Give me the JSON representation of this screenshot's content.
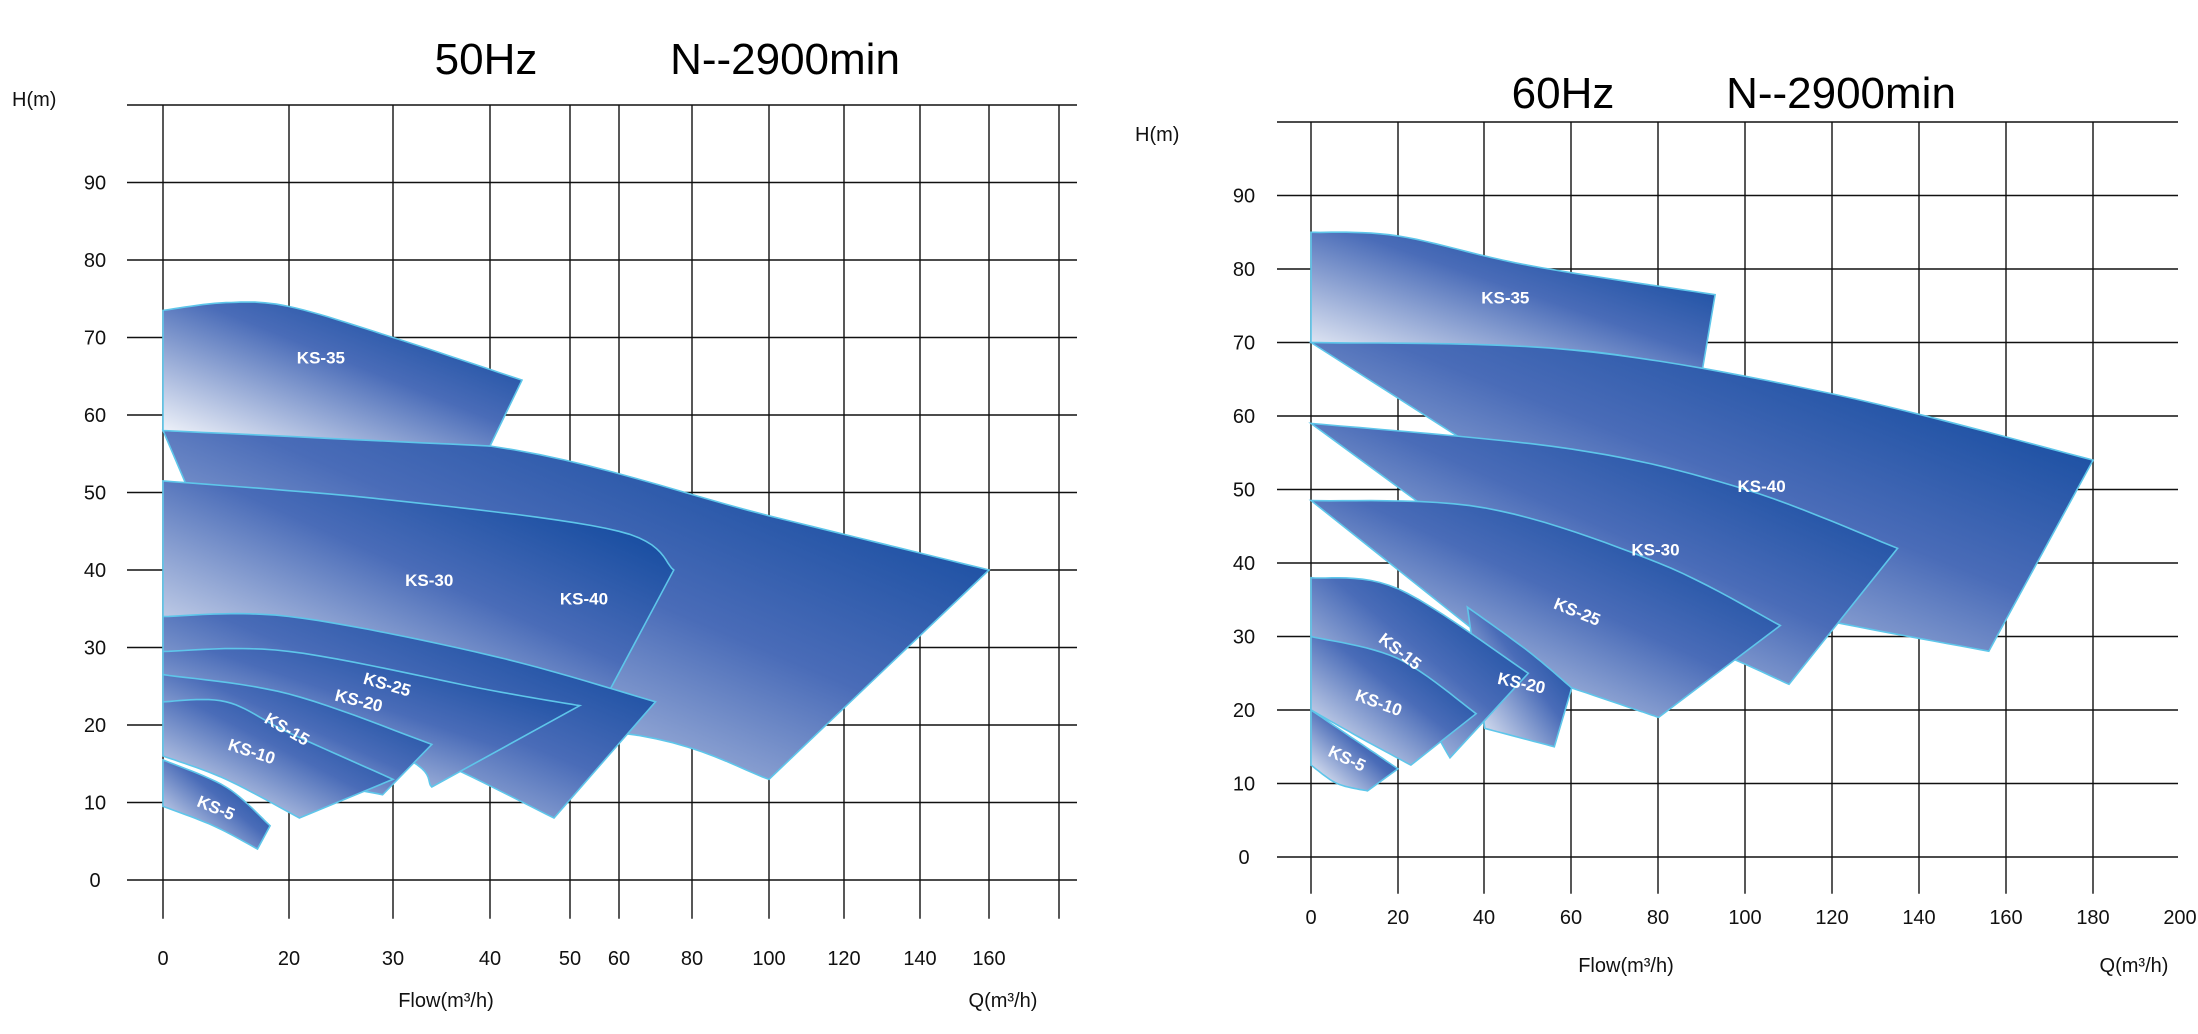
{
  "colors": {
    "curve_dark": "#003f96",
    "curve_light": "#ffffff",
    "curve_edge": "#5ec6ea",
    "grid": "#111111"
  },
  "chart_data": [
    {
      "type": "area",
      "title_left": "50Hz",
      "title_right": "N--2900min",
      "ylabel": "H(m)",
      "xlabel": "Flow(m³/h)",
      "xlabel_right": "Q(m³/h)",
      "x_ticks": [
        "0",
        "20",
        "30",
        "40",
        "50",
        "60",
        "80",
        "100",
        "120",
        "140",
        "160"
      ],
      "y_ticks": [
        0,
        10,
        20,
        30,
        40,
        50,
        60,
        70,
        80,
        90
      ],
      "ylim": [
        0,
        100
      ],
      "x_scale": "non-uniform",
      "grid": true,
      "series": [
        {
          "name": "KS-40",
          "top": [
            [
              0,
              58
            ],
            [
              40,
              56
            ],
            [
              100,
              47
            ],
            [
              160,
              40
            ]
          ],
          "bottom": [
            [
              20,
              20
            ],
            [
              60,
              19
            ],
            [
              100,
              13
            ]
          ]
        },
        {
          "name": "KS-35",
          "top": [
            [
              0,
              73.5
            ],
            [
              10,
              74.5
            ],
            [
              20,
              74
            ],
            [
              30,
              70
            ],
            [
              44,
              64.5
            ]
          ],
          "bottom": [
            [
              0,
              58
            ],
            [
              40,
              56
            ]
          ]
        },
        {
          "name": "KS-30",
          "top": [
            [
              0,
              51.5
            ],
            [
              30,
              49
            ],
            [
              60,
              45
            ],
            [
              75,
              40
            ]
          ],
          "bottom": [
            [
              0,
              34
            ],
            [
              30,
              28
            ],
            [
              56,
              22
            ]
          ]
        },
        {
          "name": "KS-25",
          "top": [
            [
              0,
              34
            ],
            [
              20,
              34
            ],
            [
              40,
              29
            ],
            [
              70,
              23
            ]
          ],
          "bottom": [
            [
              0,
              29.5
            ],
            [
              30,
              18
            ],
            [
              48,
              8
            ]
          ]
        },
        {
          "name": "KS-20",
          "top": [
            [
              0,
              29.5
            ],
            [
              20,
              29.5
            ],
            [
              40,
              24.5
            ],
            [
              52,
              22.5
            ]
          ],
          "bottom": [
            [
              0,
              26.5
            ],
            [
              30,
              16.5
            ],
            [
              34,
              12
            ]
          ]
        },
        {
          "name": "KS-15",
          "top": [
            [
              0,
              26.5
            ],
            [
              20,
              24
            ],
            [
              34,
              17.5
            ]
          ],
          "bottom": [
            [
              0,
              23
            ],
            [
              20,
              14
            ],
            [
              29,
              11
            ]
          ]
        },
        {
          "name": "KS-10",
          "top": [
            [
              0,
              23
            ],
            [
              10,
              23
            ],
            [
              20,
              19
            ],
            [
              30,
              13
            ]
          ],
          "bottom": [
            [
              0,
              16
            ],
            [
              10,
              13
            ],
            [
              21,
              8
            ]
          ]
        },
        {
          "name": "KS-5",
          "top": [
            [
              0,
              15.5
            ],
            [
              10,
              12
            ],
            [
              17,
              7
            ]
          ],
          "bottom": [
            [
              0,
              9.5
            ],
            [
              8,
              7
            ],
            [
              15,
              4
            ]
          ]
        }
      ]
    },
    {
      "type": "area",
      "title_left": "60Hz",
      "title_right": "N--2900min",
      "ylabel": "H(m)",
      "xlabel": "Flow(m³/h)",
      "xlabel_right": "Q(m³/h)",
      "x_ticks": [
        "0",
        "20",
        "40",
        "60",
        "80",
        "100",
        "120",
        "140",
        "160",
        "180",
        "200"
      ],
      "y_ticks": [
        0,
        10,
        20,
        30,
        40,
        50,
        60,
        70,
        80,
        90
      ],
      "xlim": [
        0,
        200
      ],
      "ylim": [
        0,
        100
      ],
      "grid": true,
      "series": [
        {
          "name": "KS-35",
          "top": [
            [
              0,
              85
            ],
            [
              20,
              84.5
            ],
            [
              50,
              80.5
            ],
            [
              93,
              76.5
            ]
          ],
          "bottom": [
            [
              0,
              70
            ],
            [
              60,
              69
            ],
            [
              90,
              66
            ]
          ]
        },
        {
          "name": "KS-40",
          "top": [
            [
              0,
              70
            ],
            [
              60,
              69
            ],
            [
              120,
              63
            ],
            [
              180,
              54
            ]
          ],
          "bottom": [
            [
              90,
              36
            ],
            [
              120,
              32
            ],
            [
              156,
              28
            ]
          ]
        },
        {
          "name": "KS-30",
          "top": [
            [
              0,
              59
            ],
            [
              60,
              55.5
            ],
            [
              100,
              50
            ],
            [
              135,
              42
            ]
          ],
          "bottom": [
            [
              60,
              33
            ],
            [
              90,
              28.5
            ],
            [
              110,
              23.5
            ]
          ]
        },
        {
          "name": "KS-25",
          "top": [
            [
              0,
              48.5
            ],
            [
              40,
              47.5
            ],
            [
              80,
              40
            ],
            [
              108,
              31.5
            ]
          ],
          "bottom": [
            [
              50,
              25
            ],
            [
              70,
              21
            ],
            [
              80,
              19
            ]
          ]
        },
        {
          "name": "KS-20",
          "top": [
            [
              36,
              34
            ],
            [
              50,
              28
            ],
            [
              60,
              23
            ]
          ],
          "bottom": [
            [
              40,
              17.5
            ],
            [
              56,
              15
            ]
          ]
        },
        {
          "name": "KS-15",
          "top": [
            [
              0,
              38
            ],
            [
              20,
              36.5
            ],
            [
              50,
              25
            ]
          ],
          "bottom": [
            [
              0,
              30
            ],
            [
              20,
              24
            ],
            [
              32,
              13.5
            ]
          ]
        },
        {
          "name": "KS-10",
          "top": [
            [
              0,
              30
            ],
            [
              20,
              27
            ],
            [
              38,
              19.5
            ]
          ],
          "bottom": [
            [
              0,
              20
            ],
            [
              12,
              16
            ],
            [
              23,
              12.5
            ]
          ]
        },
        {
          "name": "KS-5",
          "top": [
            [
              0,
              20
            ],
            [
              10,
              16
            ],
            [
              20,
              12
            ]
          ],
          "bottom": [
            [
              0,
              12.5
            ],
            [
              6,
              10
            ],
            [
              13,
              9
            ]
          ]
        }
      ]
    }
  ]
}
